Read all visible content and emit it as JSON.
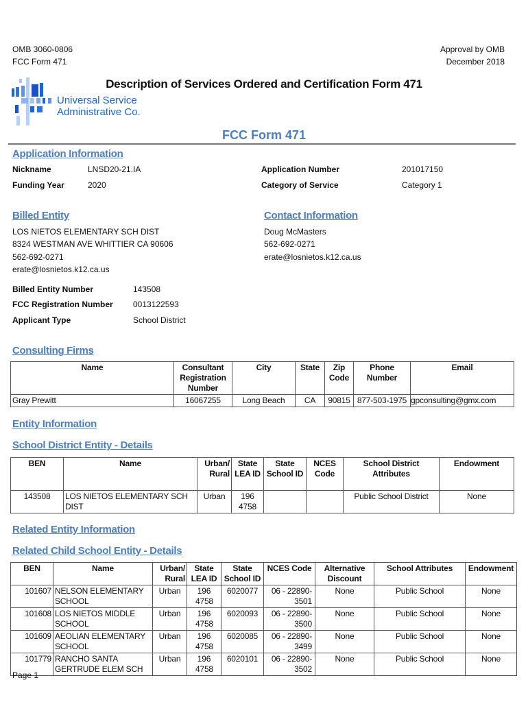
{
  "header": {
    "omb": "OMB 3060-0806",
    "form": "FCC Form 471",
    "approval": "Approval by OMB",
    "date": "December 2018",
    "title": "Description of Services Ordered and Certification Form 471",
    "logo": {
      "line1": "Universal Service",
      "line2": "Administrative Co.",
      "color": "#1a66d9"
    },
    "subtitle": "FCC Form 471"
  },
  "application": {
    "heading": "Application Information",
    "nickname_label": "Nickname",
    "nickname": "LNSD20-21.IA",
    "funding_year_label": "Funding Year",
    "funding_year": "2020",
    "app_number_label": "Application Number",
    "app_number": "201017150",
    "category_label": "Category of Service",
    "category": "Category 1"
  },
  "billed": {
    "heading": "Billed Entity",
    "lines": [
      "LOS NIETOS ELEMENTARY SCH DIST",
      "8324 WESTMAN AVE  WHITTIER CA 90606",
      "562-692-0271",
      "erate@losnietos.k12.ca.us"
    ],
    "ben_label": "Billed Entity Number",
    "ben": "143508",
    "fcc_reg_label": "FCC Registration Number",
    "fcc_reg": "0013122593",
    "type_label": "Applicant Type",
    "type": "School District"
  },
  "contact": {
    "heading": "Contact Information",
    "lines": [
      "Doug McMasters",
      "562-692-0271",
      "erate@losnietos.k12.ca.us"
    ]
  },
  "consulting": {
    "heading": "Consulting Firms",
    "columns": [
      "Name",
      "Consultant Registration Number",
      "City",
      "State",
      "Zip Code",
      "Phone Number",
      "Email"
    ],
    "rows": [
      [
        "Gray Prewitt",
        "16067255",
        "Long Beach",
        "CA",
        "90815",
        "877-503-1975",
        "gpconsulting@gmx.com"
      ]
    ]
  },
  "entity": {
    "heading": "Entity Information",
    "sub_heading": "School District Entity - Details",
    "columns": [
      "BEN",
      "Name",
      "Urban/ Rural",
      "State LEA ID",
      "State School ID",
      "NCES Code",
      "School District Attributes",
      "Endowment"
    ],
    "rows": [
      [
        "143508",
        "LOS NIETOS ELEMENTARY SCH DIST",
        "Urban",
        "196 4758",
        "",
        "",
        "Public School District",
        "None"
      ]
    ]
  },
  "related": {
    "heading": "Related Entity Information",
    "sub_heading": "Related Child School Entity - Details",
    "columns": [
      "BEN",
      "Name",
      "Urban/ Rural",
      "State LEA ID",
      "State School ID",
      "NCES Code",
      "Alternative Discount",
      "School Attributes",
      "Endowment"
    ],
    "rows": [
      [
        "101607",
        "NELSON ELEMENTARY SCHOOL",
        "Urban",
        "196 4758",
        "6020077",
        "06 - 22890- 3501",
        "None",
        "Public School",
        "None"
      ],
      [
        "101608",
        "LOS NIETOS MIDDLE SCHOOL",
        "Urban",
        "196 4758",
        "6020093",
        "06 - 22890- 3500",
        "None",
        "Public School",
        "None"
      ],
      [
        "101609",
        "AEOLIAN ELEMENTARY SCHOOL",
        "Urban",
        "196 4758",
        "6020085",
        "06 - 22890- 3499",
        "None",
        "Public School",
        "None"
      ],
      [
        "101779",
        "RANCHO SANTA GERTRUDE ELEM SCH",
        "Urban",
        "196 4758",
        "6020101",
        "06 - 22890- 3502",
        "None",
        "Public School",
        "None"
      ]
    ]
  },
  "footer": {
    "page": "Page 1"
  }
}
